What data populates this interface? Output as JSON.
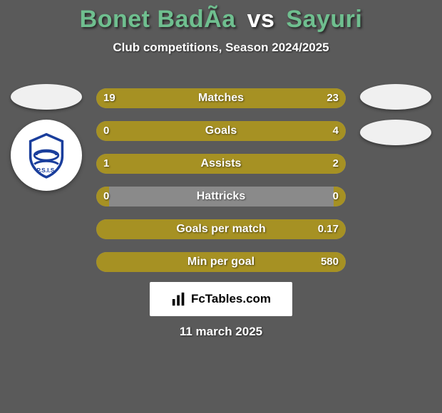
{
  "background_color": "#5a5a5a",
  "title": {
    "player1": "Bonet BadÃ­a",
    "vs": "vs",
    "player2": "Sayuri",
    "player1_color": "#6fbf8f",
    "vs_color": "#ffffff",
    "player2_color": "#6fbf8f",
    "fontsize": 34
  },
  "subtitle": {
    "text": "Club competitions, Season 2024/2025",
    "fontsize": 17,
    "color": "#ffffff"
  },
  "bar_style": {
    "track_color": "#8a8a8a",
    "left_color": "#a69123",
    "right_color": "#a69123",
    "height": 28,
    "radius": 14,
    "total_width": 350
  },
  "stats": [
    {
      "label": "Matches",
      "left_val": "19",
      "right_val": "23",
      "left_pct": 40,
      "right_pct": 60
    },
    {
      "label": "Goals",
      "left_val": "0",
      "right_val": "4",
      "left_pct": 5,
      "right_pct": 95
    },
    {
      "label": "Assists",
      "left_val": "1",
      "right_val": "2",
      "left_pct": 30,
      "right_pct": 70
    },
    {
      "label": "Hattricks",
      "left_val": "0",
      "right_val": "0",
      "left_pct": 5,
      "right_pct": 5
    },
    {
      "label": "Goals per match",
      "left_val": "",
      "right_val": "0.17",
      "left_pct": 5,
      "right_pct": 95
    },
    {
      "label": "Min per goal",
      "left_val": "",
      "right_val": "580",
      "left_pct": 5,
      "right_pct": 95
    }
  ],
  "left_player": {
    "flag_color": "#f0f0f0",
    "club_bg": "#ffffff",
    "club_emblem_color": "#1a3e9c"
  },
  "right_player": {
    "flag_color": "#f0f0f0",
    "club_bg": "#f0f0f0"
  },
  "branding": {
    "text": "FcTables.com",
    "bg": "#ffffff",
    "color": "#000000"
  },
  "date": {
    "text": "11 march 2025",
    "color": "#ffffff"
  }
}
